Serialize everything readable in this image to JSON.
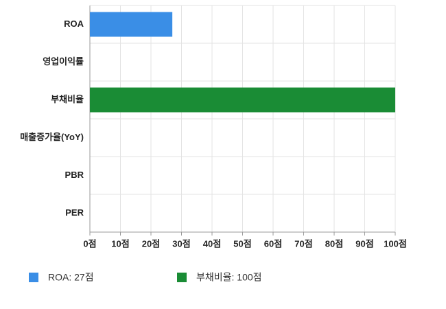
{
  "chart_data": {
    "type": "bar",
    "orientation": "horizontal",
    "categories": [
      "ROA",
      "영업이익률",
      "부채비율",
      "매출증가율(YoY)",
      "PBR",
      "PER"
    ],
    "values": [
      27,
      null,
      100,
      null,
      null,
      null
    ],
    "colors": [
      "#3a8ee6",
      null,
      "#1a8c35",
      null,
      null,
      null
    ],
    "xlim": [
      0,
      100
    ],
    "xticks": [
      {
        "value": 0,
        "label": "0점"
      },
      {
        "value": 10,
        "label": "10점"
      },
      {
        "value": 20,
        "label": "20점"
      },
      {
        "value": 30,
        "label": "30점"
      },
      {
        "value": 40,
        "label": "40점"
      },
      {
        "value": 50,
        "label": "50점"
      },
      {
        "value": 60,
        "label": "60점"
      },
      {
        "value": 70,
        "label": "70점"
      },
      {
        "value": 80,
        "label": "80점"
      },
      {
        "value": 90,
        "label": "90점"
      },
      {
        "value": 100,
        "label": "100점"
      }
    ],
    "grid": true,
    "legend": [
      {
        "label": "ROA: 27점",
        "color": "#3a8ee6"
      },
      {
        "label": "부채비율: 100점",
        "color": "#1a8c35"
      }
    ]
  }
}
